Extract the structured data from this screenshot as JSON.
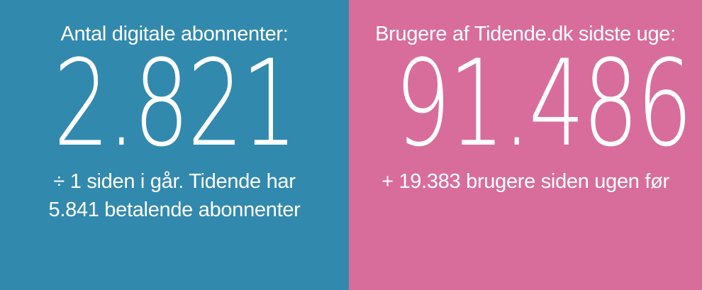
{
  "panels": [
    {
      "background": "#3289ae",
      "title": "Antal digitale abonnenter:",
      "value": "2.821",
      "subtitle_lines": [
        "÷ 1 siden i går. Tidende har",
        "5.841 betalende abonnenter"
      ]
    },
    {
      "background": "#d86d9c",
      "title": "Brugere af Tidende.dk sidste uge:",
      "value": "91.486",
      "subtitle_lines": [
        "+ 19.383 brugere siden ugen før"
      ]
    }
  ]
}
